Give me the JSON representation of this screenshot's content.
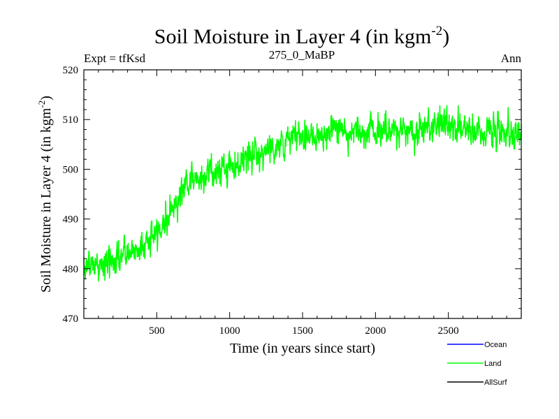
{
  "chart_data": {
    "type": "line",
    "title": "Soil Moisture in Layer 4 (in kgm",
    "title_superscript": "-2",
    "title_suffix": ")",
    "subtitle_left": "Expt = tfKsd",
    "subtitle_center": "275_0_MaBP",
    "subtitle_right": "Ann",
    "xlabel": "Time (in years since start)",
    "ylabel": "Soil Moisture in Layer 4 (in kgm",
    "ylabel_superscript": "-2",
    "ylabel_suffix": ")",
    "xlim": [
      0,
      3000
    ],
    "ylim": [
      470,
      520
    ],
    "x_ticks": [
      500,
      1000,
      1500,
      2000,
      2500
    ],
    "x_tick_labels": [
      "500",
      "1000",
      "1500",
      "2000",
      "2500"
    ],
    "y_ticks": [
      470,
      480,
      490,
      500,
      510,
      520
    ],
    "y_tick_labels": [
      "470",
      "480",
      "490",
      "500",
      "510",
      "520"
    ],
    "legend": [
      {
        "name": "Ocean",
        "color": "#0000ff"
      },
      {
        "name": "Land",
        "color": "#00ff00"
      },
      {
        "name": "AllSurf",
        "color": "#000000"
      }
    ],
    "series": [
      {
        "name": "Land",
        "color": "#00ff00",
        "trend": {
          "x": [
            0,
            100,
            200,
            300,
            400,
            500,
            550,
            600,
            650,
            700,
            800,
            900,
            1000,
            1100,
            1200,
            1300,
            1400,
            1500,
            1700,
            1900,
            2100,
            2300,
            2450,
            2600,
            2800,
            3000
          ],
          "y": [
            481,
            480.5,
            481.5,
            483,
            484.5,
            487,
            489.5,
            491.5,
            494.5,
            497.5,
            498.5,
            499.5,
            500.5,
            502,
            503.5,
            504.5,
            505.5,
            507,
            507.5,
            508,
            507.5,
            508,
            509.5,
            507.5,
            508,
            507.5
          ]
        },
        "noise_amplitude": 2.6,
        "n_points": 1500
      }
    ]
  }
}
